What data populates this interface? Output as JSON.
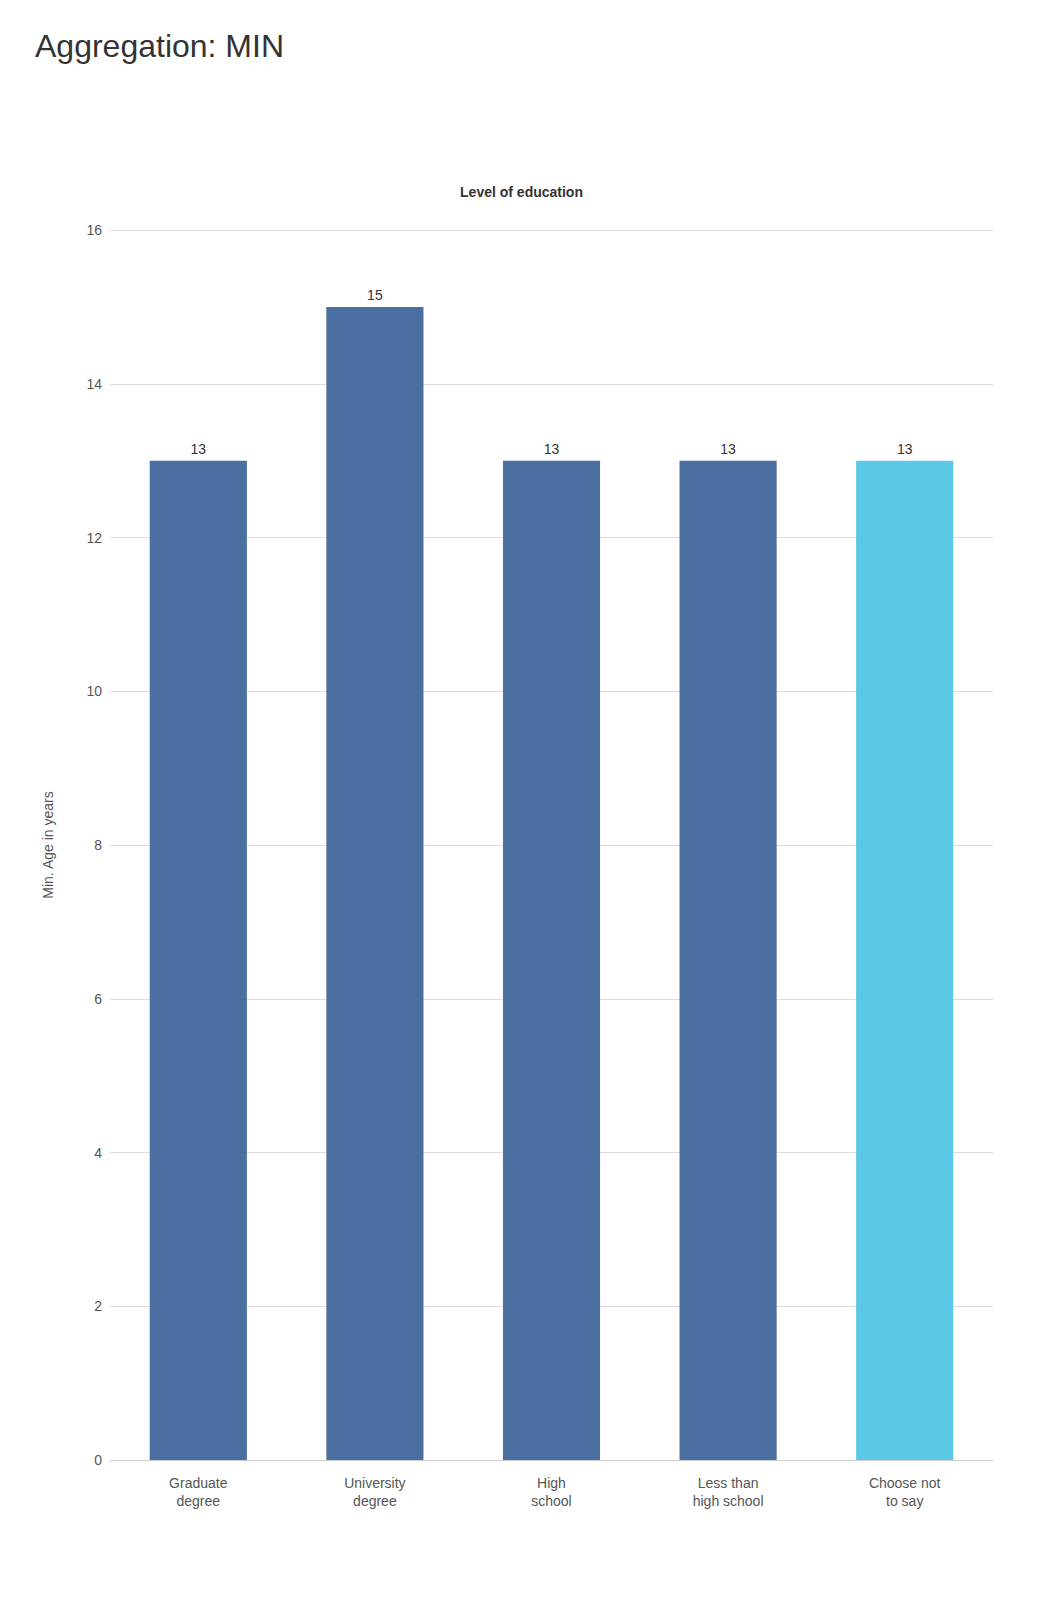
{
  "chart_data": {
    "type": "bar",
    "title": "Aggregation: MIN",
    "subtitle": "Level of education",
    "ylabel": "Min. Age in years",
    "categories": [
      "Graduate\ndegree",
      "University\ndegree",
      "High\nschool",
      "Less than\nhigh school",
      "Choose not\nto say"
    ],
    "values": [
      13,
      15,
      13,
      13,
      13
    ],
    "colors": [
      "#4a6fa0",
      "#4a6fa0",
      "#4a6fa0",
      "#4a6fa0",
      "#5bc8e8"
    ],
    "ylim": [
      0,
      16
    ],
    "yticks": [
      0,
      2,
      4,
      6,
      8,
      10,
      12,
      14,
      16
    ],
    "grid": true,
    "data_labels": true
  }
}
